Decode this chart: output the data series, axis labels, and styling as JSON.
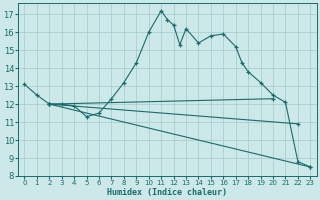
{
  "xlabel": "Humidex (Indice chaleur)",
  "bg_color": "#cce8e8",
  "grid_color": "#aacece",
  "line_color": "#1a6b6b",
  "xlim": [
    -0.5,
    23.5
  ],
  "ylim": [
    8,
    17.6
  ],
  "yticks": [
    8,
    9,
    10,
    11,
    12,
    13,
    14,
    15,
    16,
    17
  ],
  "xticks": [
    0,
    1,
    2,
    3,
    4,
    5,
    6,
    7,
    8,
    9,
    10,
    11,
    12,
    13,
    14,
    15,
    16,
    17,
    18,
    19,
    20,
    21,
    22,
    23
  ],
  "series1": [
    [
      0,
      13.1
    ],
    [
      1,
      12.5
    ],
    [
      2,
      12.0
    ],
    [
      3,
      12.0
    ],
    [
      4,
      11.9
    ],
    [
      5,
      11.3
    ],
    [
      6,
      11.5
    ],
    [
      7,
      12.3
    ],
    [
      8,
      13.2
    ],
    [
      9,
      14.3
    ],
    [
      10,
      16.0
    ],
    [
      11,
      17.2
    ],
    [
      11.5,
      16.7
    ],
    [
      12,
      16.4
    ],
    [
      12.5,
      15.3
    ],
    [
      13,
      16.2
    ],
    [
      14,
      15.4
    ],
    [
      15,
      15.8
    ],
    [
      16,
      15.9
    ],
    [
      17,
      15.2
    ],
    [
      17.5,
      14.3
    ],
    [
      18,
      13.8
    ],
    [
      19,
      13.2
    ],
    [
      20,
      12.5
    ],
    [
      21,
      12.1
    ],
    [
      22,
      8.8
    ],
    [
      23,
      8.5
    ]
  ],
  "series2": [
    [
      2,
      12.0
    ],
    [
      20,
      12.3
    ]
  ],
  "series3": [
    [
      2,
      12.0
    ],
    [
      22,
      10.9
    ]
  ],
  "series4": [
    [
      2,
      12.0
    ],
    [
      23,
      8.5
    ]
  ]
}
